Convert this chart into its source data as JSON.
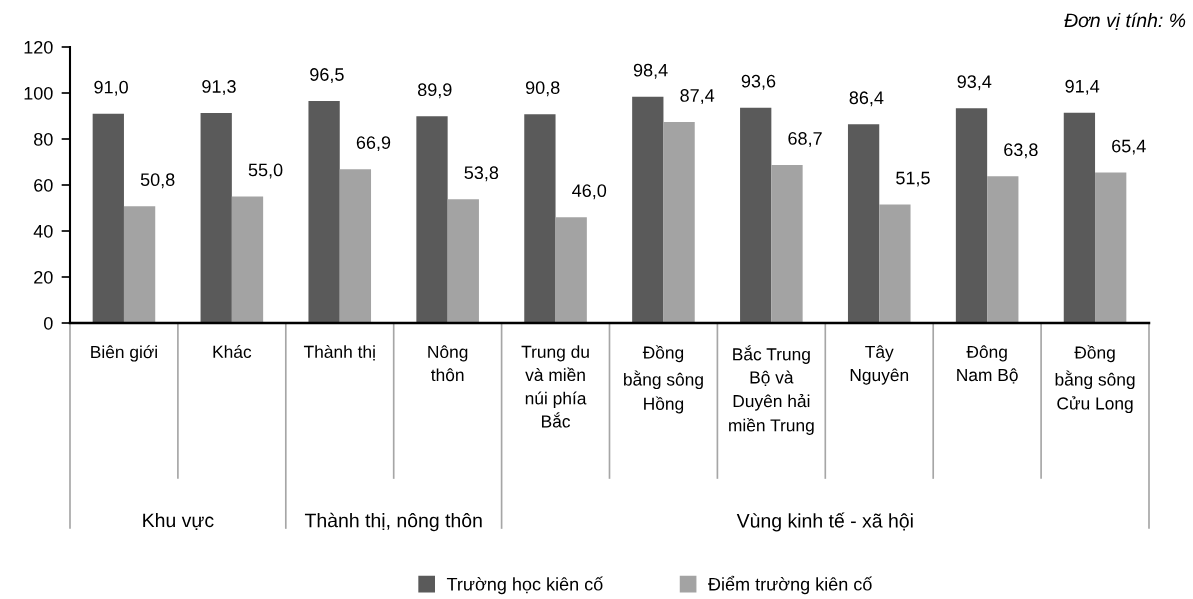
{
  "chart_data": {
    "type": "bar",
    "subtitle": "Đơn vị tính: %",
    "categories": [
      "Biên giới",
      "Khác",
      "Thành thị",
      "Nông\nthôn",
      "Trung du\nvà miền\nnúi phía\nBắc",
      "Đồng\nbằng sông\nHồng",
      "Bắc Trung\nBộ và\nDuyên hải\nmiền Trung",
      "Tây\nNguyên",
      "Đông\nNam Bộ",
      "Đồng\nbằng sông\nCửu Long"
    ],
    "series": [
      {
        "name": "Trường học kiên cố",
        "color": "#5a5a5a",
        "values": [
          91.0,
          91.3,
          96.5,
          89.9,
          90.8,
          98.4,
          93.6,
          86.4,
          93.4,
          91.4
        ],
        "value_labels": [
          "91,0",
          "91,3",
          "96,5",
          "89,9",
          "90,8",
          "98,4",
          "93,6",
          "86,4",
          "93,4",
          "91,4"
        ]
      },
      {
        "name": "Điểm trường kiên cố",
        "color": "#a3a3a3",
        "values": [
          50.8,
          55.0,
          66.9,
          53.8,
          46.0,
          87.4,
          68.7,
          51.5,
          63.8,
          65.4
        ],
        "value_labels": [
          "50,8",
          "55,0",
          "66,9",
          "53,8",
          "46,0",
          "87,4",
          "68,7",
          "51,5",
          "63,8",
          "65,4"
        ]
      }
    ],
    "ylim": [
      0,
      120
    ],
    "yticks": [
      0,
      20,
      40,
      60,
      80,
      100,
      120
    ],
    "legend": "bottom",
    "annotations": [
      "Khu vực",
      "Thành thị, nông thôn",
      "Vùng kinh tế - xã hội"
    ]
  }
}
